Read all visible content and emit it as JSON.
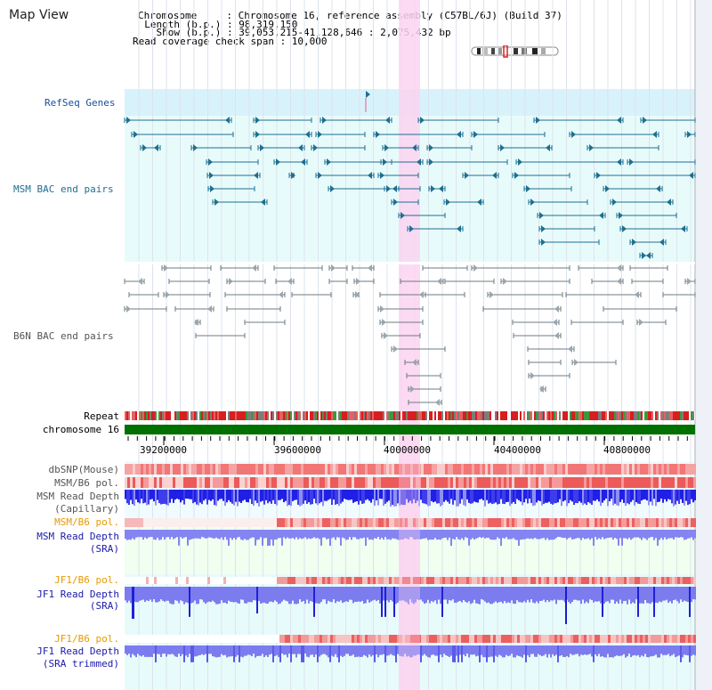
{
  "header": {
    "title": "Map View",
    "info_lines": [
      "Chromosome     : Chromosome 16, reference assembly (C57BL/6J) (Build 37)",
      "  Length (b.p.) : 98,319,150",
      "    Show (b.p.) : 39,053,215-41,128,646 : 2,075,432 bp",
      "Read coverage check span : 10,000"
    ]
  },
  "colors": {
    "refseq_bg": "#d8f2fb",
    "msm_bg": "#e8fbfb",
    "highlight": "#fbd3f1",
    "gene": "#1e6f90",
    "b6n": "#6e7b82",
    "chrom_bar": "#007000",
    "snp": "#f07070",
    "capillary_depth": "#2a2ae8",
    "sra_depth": "#8484f2",
    "pol_label": "#e69a00",
    "depth_label": "#1a1aa8"
  },
  "tracks": {
    "refseq": "RefSeq Genes",
    "msm_bac": "MSM BAC end pairs",
    "b6n_bac": "B6N BAC end pairs",
    "repeat": "Repeat",
    "chromosome": "chromosome 16",
    "dbsnp": "dbSNP(Mouse)",
    "msm_b6_pol": "MSM/B6 pol.",
    "msm_read_depth_cap_1": "MSM Read Depth",
    "msm_read_depth_cap_2": "(Capillary)",
    "msm_b6_pol_2": "MSM/B6 pol.",
    "msm_read_depth_sra_1": "MSM Read Depth",
    "msm_read_depth_sra_2": "(SRA)",
    "jf1_b6_pol": "JF1/B6 pol.",
    "jf1_read_depth_sra_1": "JF1 Read Depth",
    "jf1_read_depth_sra_2": "(SRA)",
    "jf1_b6_pol_2": "JF1/B6 pol.",
    "jf1_read_depth_trim_1": "JF1 Read Depth",
    "jf1_read_depth_trim_2": "(SRA trimmed)"
  },
  "ruler": {
    "ticks": [
      "39200000",
      "39600000",
      "40000000",
      "40400000",
      "40800000"
    ]
  },
  "view": {
    "start": 39053215,
    "end": 41128646,
    "highlight_start": 40107000,
    "highlight_end": 40185000
  }
}
